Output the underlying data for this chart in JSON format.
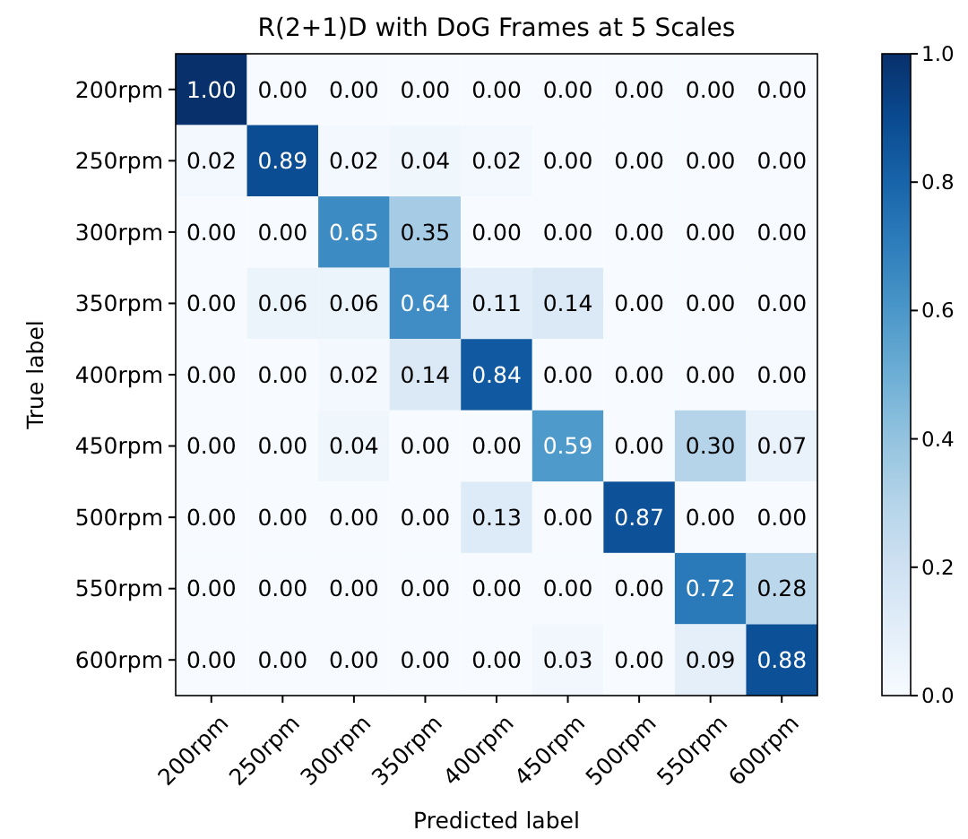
{
  "chart_data": {
    "type": "heatmap",
    "title": "R(2+1)D with DoG Frames at 5 Scales",
    "xlabel": "Predicted label",
    "ylabel": "True label",
    "categories": [
      "200rpm",
      "250rpm",
      "300rpm",
      "350rpm",
      "400rpm",
      "450rpm",
      "500rpm",
      "550rpm",
      "600rpm"
    ],
    "y_categories": [
      "200rpm",
      "250rpm",
      "300rpm",
      "350rpm",
      "400rpm",
      "450rpm",
      "500rpm",
      "550rpm",
      "600rpm"
    ],
    "cells": [
      [
        1.0,
        0.0,
        0.0,
        0.0,
        0.0,
        0.0,
        0.0,
        0.0,
        0.0
      ],
      [
        0.02,
        0.89,
        0.02,
        0.04,
        0.02,
        0.0,
        0.0,
        0.0,
        0.0
      ],
      [
        0.0,
        0.0,
        0.65,
        0.35,
        0.0,
        0.0,
        0.0,
        0.0,
        0.0
      ],
      [
        0.0,
        0.06,
        0.06,
        0.64,
        0.11,
        0.14,
        0.0,
        0.0,
        0.0
      ],
      [
        0.0,
        0.0,
        0.02,
        0.14,
        0.84,
        0.0,
        0.0,
        0.0,
        0.0
      ],
      [
        0.0,
        0.0,
        0.04,
        0.0,
        0.0,
        0.59,
        0.0,
        0.3,
        0.07
      ],
      [
        0.0,
        0.0,
        0.0,
        0.0,
        0.13,
        0.0,
        0.87,
        0.0,
        0.0
      ],
      [
        0.0,
        0.0,
        0.0,
        0.0,
        0.0,
        0.0,
        0.0,
        0.72,
        0.28
      ],
      [
        0.0,
        0.0,
        0.0,
        0.0,
        0.0,
        0.03,
        0.0,
        0.09,
        0.88
      ]
    ],
    "cell_labels": [
      [
        "1.00",
        "0.00",
        "0.00",
        "0.00",
        "0.00",
        "0.00",
        "0.00",
        "0.00",
        "0.00"
      ],
      [
        "0.02",
        "0.89",
        "0.02",
        "0.04",
        "0.02",
        "0.00",
        "0.00",
        "0.00",
        "0.00"
      ],
      [
        "0.00",
        "0.00",
        "0.65",
        "0.35",
        "0.00",
        "0.00",
        "0.00",
        "0.00",
        "0.00"
      ],
      [
        "0.00",
        "0.06",
        "0.06",
        "0.64",
        "0.11",
        "0.14",
        "0.00",
        "0.00",
        "0.00"
      ],
      [
        "0.00",
        "0.00",
        "0.02",
        "0.14",
        "0.84",
        "0.00",
        "0.00",
        "0.00",
        "0.00"
      ],
      [
        "0.00",
        "0.00",
        "0.04",
        "0.00",
        "0.00",
        "0.59",
        "0.00",
        "0.30",
        "0.07"
      ],
      [
        "0.00",
        "0.00",
        "0.00",
        "0.00",
        "0.13",
        "0.00",
        "0.87",
        "0.00",
        "0.00"
      ],
      [
        "0.00",
        "0.00",
        "0.00",
        "0.00",
        "0.00",
        "0.00",
        "0.00",
        "0.72",
        "0.28"
      ],
      [
        "0.00",
        "0.00",
        "0.00",
        "0.00",
        "0.00",
        "0.03",
        "0.00",
        "0.09",
        "0.88"
      ]
    ],
    "clim": [
      0,
      1
    ],
    "cticks": [
      {
        "value": 0,
        "label": "0.0"
      },
      {
        "value": 0.2,
        "label": "0.2"
      },
      {
        "value": 0.4,
        "label": "0.4"
      },
      {
        "value": 0.6,
        "label": "0.6"
      },
      {
        "value": 0.8,
        "label": "0.8"
      },
      {
        "value": 1,
        "label": "1.0"
      }
    ]
  }
}
